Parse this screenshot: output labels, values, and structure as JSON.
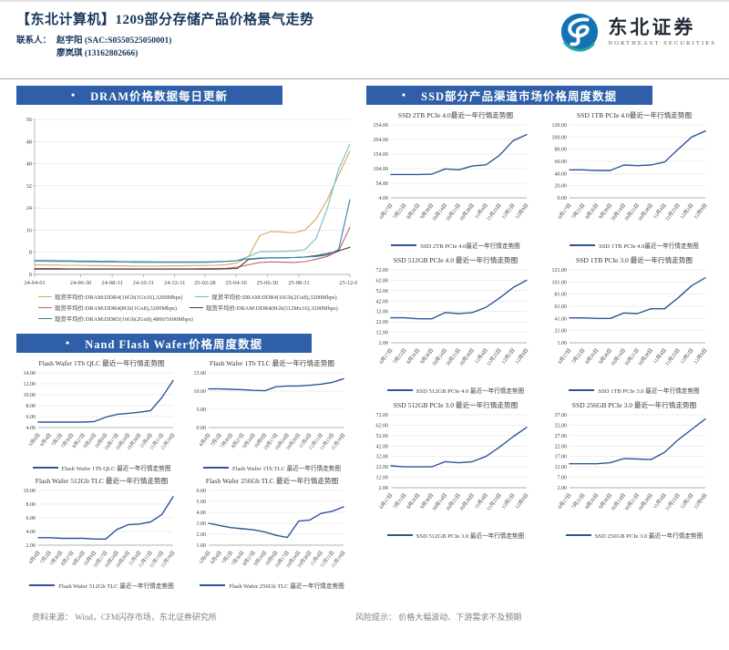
{
  "ui": {
    "bullet": "•"
  },
  "header": {
    "title": "【东北计算机】1209部分存储产品价格景气走势",
    "contact_label": "联系人：",
    "contacts": [
      "赵宇阳 (SAC:S0550525050001)",
      "廖岚琪 (13162802666)"
    ]
  },
  "logo": {
    "cn": "东北证券",
    "en": "NORTHEAST SECURITIES"
  },
  "sections": {
    "dram": {
      "title": "DRAM价格数据每日更新"
    },
    "nand": {
      "title": "Nand Flash Wafer价格周度数据"
    },
    "ssd": {
      "title": "SSD部分产品渠道市场价格周度数据"
    }
  },
  "footer": {
    "source": "资料来源： Wind，CFM闪存市场，东北证券研究所",
    "risk": "风险提示： 价格大幅波动、下游需求不及预期"
  },
  "chart_data": [
    {
      "id": "dram",
      "group": "dram",
      "type": "line",
      "title": "DRAM价格数据每日更新",
      "ylim": [
        0,
        56
      ],
      "yticks": [
        0,
        8,
        16,
        24,
        32,
        40,
        48,
        56
      ],
      "y_dec": 0,
      "x_ticks": [
        {
          "label": "24-04-01",
          "f": 0.0
        },
        {
          "label": "24-06-30",
          "f": 0.146
        },
        {
          "label": "24-08-31",
          "f": 0.246
        },
        {
          "label": "24-10-31",
          "f": 0.345
        },
        {
          "label": "24-12-31",
          "f": 0.444
        },
        {
          "label": "25-02-28",
          "f": 0.54
        },
        {
          "label": "25-04-30",
          "f": 0.639
        },
        {
          "label": "25-06-30",
          "f": 0.738
        },
        {
          "label": "25-08-31",
          "f": 0.838
        },
        {
          "label": "25-12-09",
          "f": 1.0
        }
      ],
      "series": [
        {
          "name": "现货平均价:DRAM:DDR4(16Gb(1Gx16),3200Mbps)",
          "color": "#D9A65A",
          "values": [
            3.5,
            3.4,
            3.4,
            3.3,
            3.3,
            3.2,
            3.2,
            3.1,
            3.1,
            3.0,
            3.0,
            3.0,
            3.1,
            3.1,
            3.2,
            3.2,
            3.3,
            3.5,
            4.2,
            6.5,
            14.0,
            15.5,
            15.3,
            15.0,
            16.0,
            20.0,
            27.0,
            36.0,
            44.5
          ]
        },
        {
          "name": "现货平均价:DRAM:DDR4(16Gb(2Gx8),3200Mbps)",
          "color": "#6FBFBA",
          "values": [
            4.7,
            4.7,
            4.6,
            4.6,
            4.5,
            4.5,
            4.4,
            4.4,
            4.4,
            4.3,
            4.3,
            4.3,
            4.3,
            4.3,
            4.3,
            4.3,
            4.4,
            4.6,
            5.0,
            6.5,
            8.2,
            8.3,
            8.4,
            8.5,
            8.9,
            13.0,
            24.0,
            38.0,
            47.0
          ]
        },
        {
          "name": "现货平均价:DRAM:DDR4(8Gb(1Gx8),3200Mbps)",
          "color": "#C0606A",
          "values": [
            2.1,
            2.1,
            2.1,
            2.0,
            2.0,
            2.0,
            2.0,
            2.0,
            2.0,
            2.0,
            2.0,
            2.0,
            2.0,
            2.0,
            2.0,
            2.1,
            2.1,
            2.2,
            2.6,
            3.5,
            4.3,
            4.5,
            4.4,
            4.3,
            4.6,
            5.5,
            6.5,
            8.5,
            17.0
          ]
        },
        {
          "name": "现货平均价:DRAM:DDR4(8Gb(512Mx16),3200Mbps)",
          "color": "#3F3F3F",
          "values": [
            1.9,
            1.9,
            1.9,
            1.9,
            1.9,
            1.9,
            1.9,
            1.9,
            1.9,
            1.9,
            1.9,
            1.9,
            1.9,
            1.9,
            1.9,
            1.9,
            1.9,
            2.0,
            2.1,
            5.4,
            5.8,
            6.0,
            6.0,
            6.1,
            6.3,
            6.8,
            7.5,
            8.5,
            9.8
          ]
        },
        {
          "name": "现货平均价:DRAM:DDR5(16Gb(2Gx8),4800/5600Mbps)",
          "color": "#3D7EAA",
          "values": [
            5.0,
            5.0,
            4.9,
            4.9,
            4.8,
            4.8,
            4.7,
            4.7,
            4.6,
            4.6,
            4.6,
            4.5,
            4.5,
            4.5,
            4.5,
            4.5,
            4.6,
            4.7,
            5.0,
            5.6,
            5.9,
            6.0,
            6.0,
            6.1,
            6.3,
            6.5,
            7.0,
            9.0,
            27.0
          ]
        }
      ]
    },
    {
      "id": "nand-1tb-qlc",
      "group": "nand",
      "type": "line",
      "title": "Flash Wafer 1Tb QLC 最近一年行情走势图",
      "legend": "Flash Wafer 1Tb QLC 最近一年行情走势图",
      "ylim": [
        4,
        14
      ],
      "yticks": [
        4,
        6,
        8,
        10,
        12,
        14
      ],
      "y_dec": 2,
      "x": [
        "5月6日",
        "6月4日",
        "7月2日",
        "7月30日",
        "8月27日",
        "9月24日",
        "10月9日",
        "10月17日",
        "10月24日",
        "10月28日",
        "11月4日",
        "11月11日",
        "11月19日"
      ],
      "series": [
        {
          "name": "Flash Wafer 1Tb QLC",
          "color": "#2F5597",
          "values": [
            5.0,
            5.0,
            5.0,
            5.0,
            5.0,
            5.1,
            5.9,
            6.4,
            6.6,
            6.8,
            7.1,
            9.5,
            12.6
          ]
        }
      ]
    },
    {
      "id": "nand-1tb-tlc",
      "group": "nand",
      "type": "line",
      "title": "Flash Wafer 1Tb TLC 最近一年行情走势图",
      "legend": "Flash Wafer 1Tb TLC 最近一年行情走势图",
      "ylim": [
        0,
        15
      ],
      "yticks": [
        0,
        5,
        10,
        15
      ],
      "y_dec": 2,
      "x": [
        "6月4日",
        "7月2日",
        "7月30日",
        "8月27日",
        "9月24日",
        "10月9日",
        "10月17日",
        "10月24日",
        "10月28日",
        "11月4日",
        "11月11日",
        "11月13日",
        "11月19日"
      ],
      "series": [
        {
          "name": "Flash Wafer 1Tb TLC",
          "color": "#2F5597",
          "values": [
            10.6,
            10.6,
            10.5,
            10.4,
            10.2,
            10.1,
            11.2,
            11.4,
            11.4,
            11.6,
            11.9,
            12.4,
            13.4
          ]
        }
      ]
    },
    {
      "id": "nand-512gb-tlc",
      "group": "nand",
      "type": "line",
      "title": "Flash Wafer 512Gb TLC 最近一年行情走势图",
      "legend": "Flash Wafer 512Gb TLC 最近一年行情走势图",
      "ylim": [
        2,
        10
      ],
      "yticks": [
        2,
        4,
        6,
        8,
        10
      ],
      "y_dec": 2,
      "x": [
        "6月4日",
        "7月2日",
        "7月30日",
        "8月27日",
        "9月24日",
        "10月9日",
        "10月17日",
        "10月24日",
        "10月28日",
        "11月4日",
        "11月11日",
        "11月13日",
        "11月19日"
      ],
      "series": [
        {
          "name": "Flash Wafer 512Gb TLC",
          "color": "#2F5597",
          "values": [
            3.1,
            3.1,
            3.0,
            3.0,
            3.0,
            2.9,
            2.9,
            4.3,
            5.0,
            5.1,
            5.4,
            6.5,
            9.1
          ]
        }
      ]
    },
    {
      "id": "nand-256gb-tlc",
      "group": "nand",
      "type": "line",
      "title": "Flash Wafer 256Gb TLC 最近一年行情走势图",
      "legend": "Flash Wafer 256Gb TLC 最近一年行情走势图",
      "ylim": [
        1,
        6
      ],
      "yticks": [
        1,
        2,
        3,
        4,
        5,
        6
      ],
      "y_dec": 2,
      "x": [
        "5月6日",
        "6月4日",
        "7月2日",
        "7月30日",
        "8月27日",
        "9月24日",
        "10月9日",
        "10月17日",
        "10月24日",
        "10月28日",
        "11月4日",
        "11月11日",
        "11月19日"
      ],
      "series": [
        {
          "name": "Flash Wafer 256Gb TLC",
          "color": "#2F5597",
          "values": [
            3.0,
            2.8,
            2.6,
            2.5,
            2.4,
            2.2,
            1.9,
            1.7,
            3.2,
            3.3,
            3.9,
            4.1,
            4.5
          ]
        }
      ]
    },
    {
      "id": "ssd-2tb-p4",
      "group": "ssd",
      "type": "line",
      "title": "SSD 2TB PCIe 4.0最近一年行情走势图",
      "legend": "SSD 2TB PCIe 4.0最近一年行情走势图",
      "ylim": [
        4,
        254
      ],
      "yticks": [
        4,
        54,
        104,
        154,
        204,
        254
      ],
      "y_dec": 2,
      "x": [
        "6月17日",
        "7月22日",
        "8月26日",
        "9月30日",
        "10月14日",
        "10月21日",
        "10月28日",
        "11月4日",
        "11月25日",
        "12月2日",
        "12月9日"
      ],
      "series": [
        {
          "name": "SSD 2TB PCIe 4.0",
          "color": "#2F5597",
          "values": [
            84,
            84,
            84,
            85,
            103,
            100,
            113,
            117,
            150,
            200,
            221
          ]
        }
      ]
    },
    {
      "id": "ssd-1tb-p4",
      "group": "ssd",
      "type": "line",
      "title": "SSD 1TB PCIe 4.0最近一年行情走势图",
      "legend": "SSD 1TB PCIe 4.0最近一年行情走势图",
      "ylim": [
        0,
        120
      ],
      "yticks": [
        0,
        20,
        40,
        60,
        80,
        100,
        120
      ],
      "y_dec": 2,
      "x": [
        "6月17日",
        "7月22日",
        "8月26日",
        "9月30日",
        "10月14日",
        "10月21日",
        "10月28日",
        "11月4日",
        "11月25日",
        "12月2日",
        "12月9日"
      ],
      "series": [
        {
          "name": "SSD 1TB PCIe 4.0",
          "color": "#2F5597",
          "values": [
            46,
            46,
            45,
            45,
            54,
            53,
            54,
            59,
            80,
            100,
            110
          ]
        }
      ]
    },
    {
      "id": "ssd-512gb-p4",
      "group": "ssd",
      "type": "line",
      "title": "SSD 512GB PCIe 4.0 最近一年行情走势图",
      "legend": "SSD 512GB PCIe 4.0 最近一年行情走势图",
      "ylim": [
        2,
        72
      ],
      "yticks": [
        2,
        12,
        22,
        32,
        42,
        52,
        62,
        72
      ],
      "y_dec": 2,
      "x": [
        "6月17日",
        "7月22日",
        "8月26日",
        "9月30日",
        "10月14日",
        "10月21日",
        "10月28日",
        "11月4日",
        "11月25日",
        "12月2日",
        "12月9日"
      ],
      "series": [
        {
          "name": "SSD 512GB PCIe 4.0",
          "color": "#2F5597",
          "values": [
            26,
            26,
            25,
            25,
            31,
            30,
            31,
            36,
            45,
            55,
            62
          ]
        }
      ]
    },
    {
      "id": "ssd-1tb-p3",
      "group": "ssd",
      "type": "line",
      "title": "SSD 1TB PCIe 3.0 最近一年行情走势图",
      "legend": "SSD 1TB PCIe 3.0 最近一年行情走势图",
      "ylim": [
        1,
        121
      ],
      "yticks": [
        1,
        21,
        41,
        61,
        81,
        101,
        121
      ],
      "y_dec": 2,
      "x": [
        "6月17日",
        "7月22日",
        "8月26日",
        "9月30日",
        "10月14日",
        "10月21日",
        "10月28日",
        "11月4日",
        "11月25日",
        "12月2日",
        "12月9日"
      ],
      "series": [
        {
          "name": "SSD 1TB PCIe 3.0",
          "color": "#2F5597",
          "values": [
            42,
            42,
            41,
            41,
            50,
            49,
            57,
            57,
            75,
            95,
            108
          ]
        }
      ]
    },
    {
      "id": "ssd-512gb-p3",
      "group": "ssd",
      "type": "line",
      "title": "SSD 512GB PCIe 3.0 最近一年行情走势图",
      "legend": "SSD 512GB PCIe 3.0 最近一年行情走势图",
      "ylim": [
        2,
        72
      ],
      "yticks": [
        2,
        12,
        22,
        32,
        42,
        52,
        62,
        72
      ],
      "y_dec": 2,
      "x": [
        "6月17日",
        "7月22日",
        "8月26日",
        "9月30日",
        "10月14日",
        "10月21日",
        "10月28日",
        "11月4日",
        "11月25日",
        "12月2日",
        "12月9日"
      ],
      "series": [
        {
          "name": "SSD 512GB PCIe 3.0",
          "color": "#2F5597",
          "values": [
            23,
            22,
            22,
            22,
            27,
            26,
            27,
            32,
            41,
            51,
            60
          ]
        }
      ]
    },
    {
      "id": "ssd-256gb-p3",
      "group": "ssd",
      "type": "line",
      "title": "SSD 256GB PCIe 3.0 最近一年行情走势图",
      "legend": "SSD 256GB PCIe 3.0 最近一年行情走势图",
      "ylim": [
        2,
        37
      ],
      "yticks": [
        2,
        7,
        12,
        17,
        22,
        27,
        32,
        37
      ],
      "y_dec": 2,
      "x": [
        "6月17日",
        "7月22日",
        "8月26日",
        "9月30日",
        "10月14日",
        "10月21日",
        "10月28日",
        "11月4日",
        "11月25日",
        "12月2日",
        "12月9日"
      ],
      "series": [
        {
          "name": "SSD 256GB PCIe 3.0",
          "color": "#2F5597",
          "values": [
            13.5,
            13.5,
            13.5,
            14,
            16,
            15.8,
            15.5,
            19,
            25,
            30,
            35
          ]
        }
      ]
    }
  ]
}
